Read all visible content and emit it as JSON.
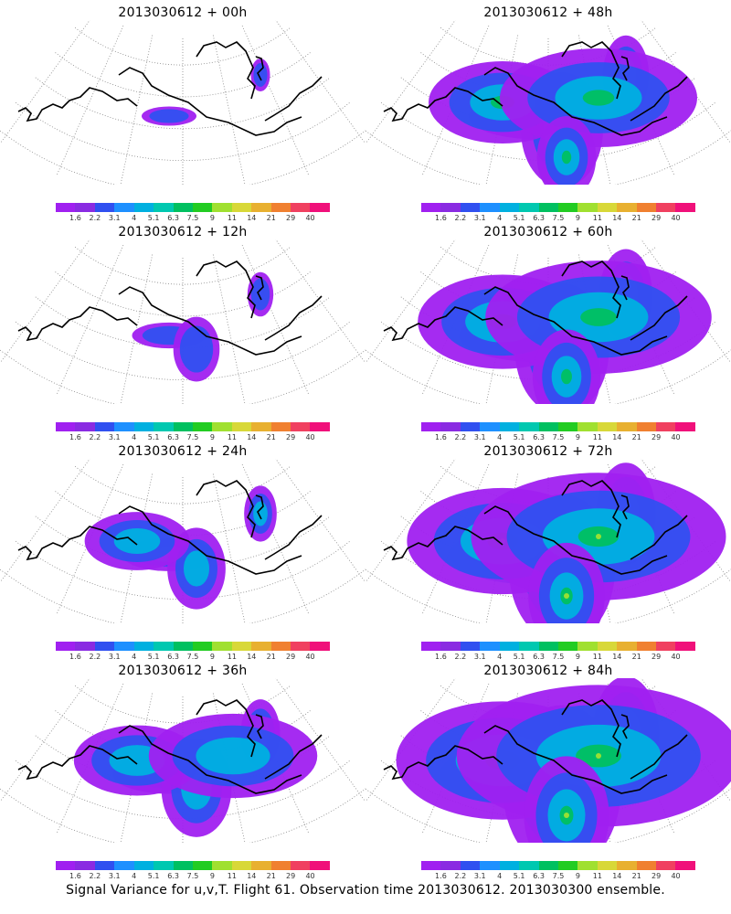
{
  "panels": [
    {
      "title": "2013030612 + 00h",
      "intensity": 0
    },
    {
      "title": "2013030612 + 48h",
      "intensity": 4
    },
    {
      "title": "2013030612 + 12h",
      "intensity": 1
    },
    {
      "title": "2013030612 + 60h",
      "intensity": 5
    },
    {
      "title": "2013030612 + 24h",
      "intensity": 2
    },
    {
      "title": "2013030612 + 72h",
      "intensity": 6
    },
    {
      "title": "2013030612 + 36h",
      "intensity": 3
    },
    {
      "title": "2013030612 + 84h",
      "intensity": 7
    }
  ],
  "colorbar": {
    "labels": [
      "1.6",
      "2.2",
      "3.1",
      "4",
      "5.1",
      "6.3",
      "7.5",
      "9",
      "11",
      "14",
      "21",
      "29",
      "40"
    ],
    "colors": [
      "#a020f0",
      "#8a2be2",
      "#3050f0",
      "#1e90ff",
      "#00b0e0",
      "#00c8b0",
      "#00c060",
      "#22cc22",
      "#a0e030",
      "#d8d838",
      "#e8b030",
      "#f08030",
      "#f04060",
      "#f0107a"
    ]
  },
  "caption": "Signal Variance for u,v,T. Flight 61. Observation time 2013030612. 2013030300 ensemble."
}
